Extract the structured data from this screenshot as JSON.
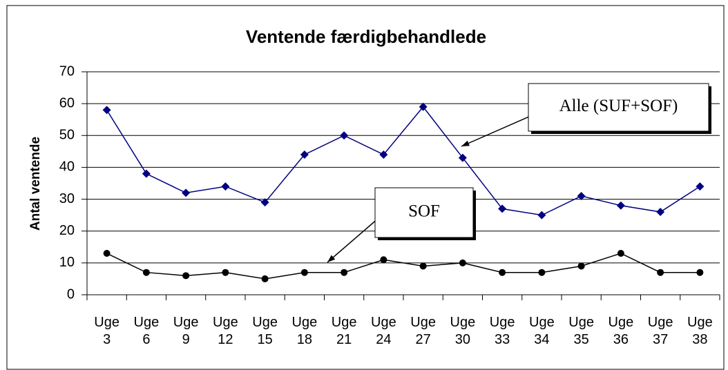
{
  "chart_data": {
    "type": "line",
    "title": "Ventende færdigbehandlede",
    "y_label": "Antal ventende",
    "categories": [
      "Uge 3",
      "Uge 6",
      "Uge 9",
      "Uge 12",
      "Uge 15",
      "Uge 18",
      "Uge 21",
      "Uge 24",
      "Uge 27",
      "Uge 30",
      "Uge 33",
      "Uge 34",
      "Uge 35",
      "Uge 36",
      "Uge 37",
      "Uge 38"
    ],
    "series": [
      {
        "name": "Alle (SUF+SOF)",
        "color": "#000080",
        "marker": "diamond",
        "values": [
          58,
          38,
          32,
          34,
          29,
          44,
          50,
          44,
          59,
          43,
          27,
          25,
          31,
          28,
          26,
          34
        ]
      },
      {
        "name": "SOF",
        "color": "#000000",
        "marker": "circle",
        "values": [
          13,
          7,
          6,
          7,
          5,
          7,
          7,
          11,
          9,
          10,
          7,
          7,
          9,
          13,
          7,
          7
        ]
      }
    ],
    "ylim": [
      0,
      70
    ],
    "yticks": [
      0,
      10,
      20,
      30,
      40,
      50,
      60,
      70
    ],
    "grid": true
  }
}
